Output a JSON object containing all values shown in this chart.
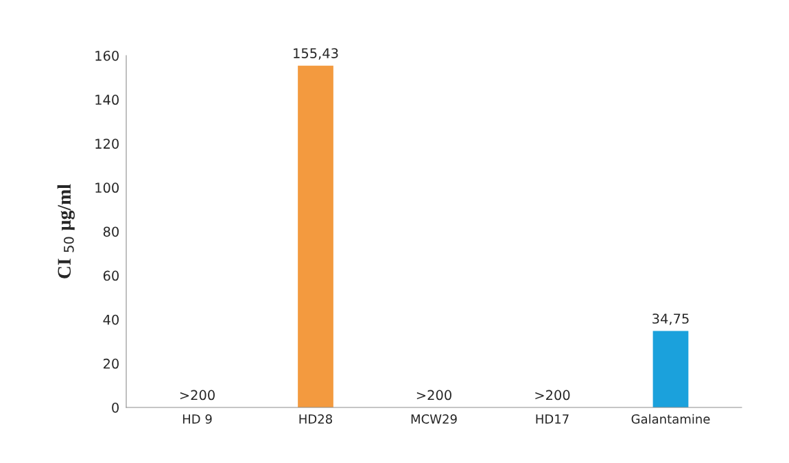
{
  "chart_data": {
    "type": "bar",
    "ylabel": "CI $_{50}$ µg/ml",
    "categories": [
      "HD 9",
      "HD28",
      "MCW29",
      "HD17",
      "Galantamine"
    ],
    "values": [
      null,
      155.43,
      null,
      null,
      34.75
    ],
    "value_labels": [
      ">200",
      "155,43",
      ">200",
      ">200",
      "34,75"
    ],
    "colors": [
      "#d9a77f",
      "#f39a3f",
      "#d4a88a",
      "#c9b8aa",
      "#1ba1dc"
    ],
    "ylim": [
      0,
      160
    ],
    "yticks": [
      0,
      20,
      40,
      60,
      80,
      100,
      120,
      140,
      160
    ],
    "grid": false
  }
}
